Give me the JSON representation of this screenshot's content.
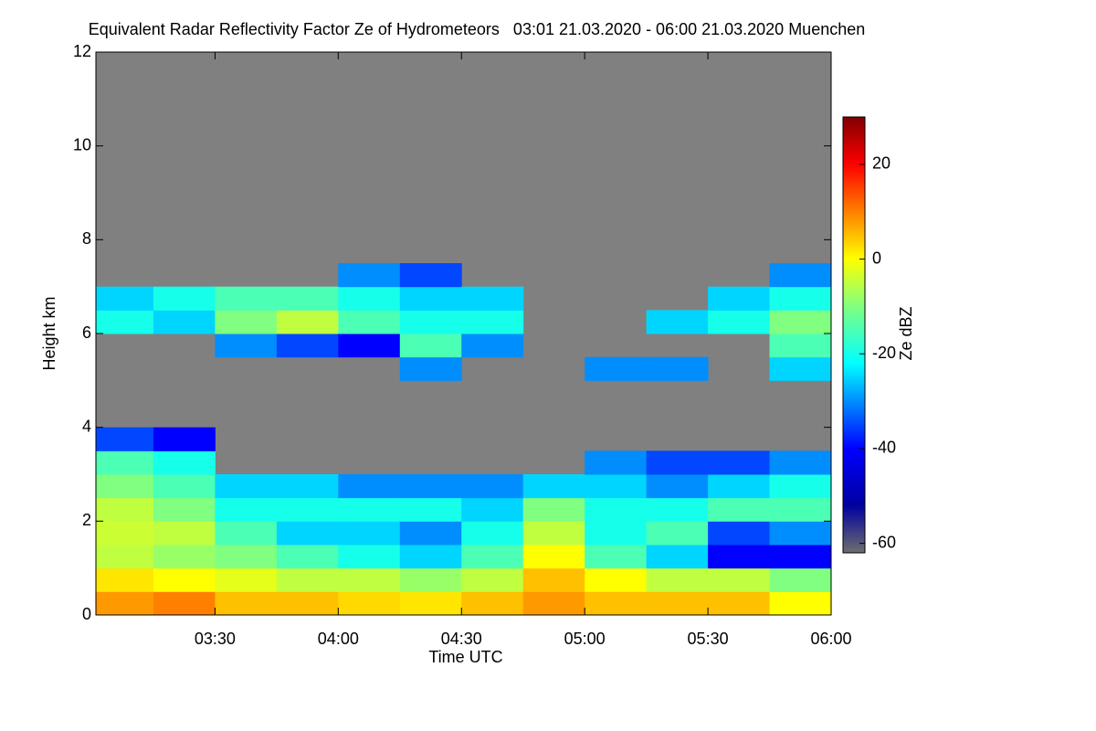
{
  "chart_data": {
    "type": "heatmap",
    "title": "Equivalent Radar Reflectivity Factor Ze of Hydrometeors   03:01 21.03.2020 - 06:00 21.03.2020 Muenchen",
    "x_label": "Time UTC",
    "y_label": "Height km",
    "colorbar_label": "Ze dBZ",
    "background": "#808080",
    "xlim": [
      3.0167,
      6.0
    ],
    "xticks": [
      {
        "value": 3.5,
        "label": "03:30"
      },
      {
        "value": 4.0,
        "label": "04:00"
      },
      {
        "value": 4.5,
        "label": "04:30"
      },
      {
        "value": 5.0,
        "label": "05:00"
      },
      {
        "value": 5.5,
        "label": "05:30"
      },
      {
        "value": 6.0,
        "label": "06:00"
      }
    ],
    "ylim": [
      0,
      12
    ],
    "yticks": [
      0,
      2,
      4,
      6,
      8,
      10,
      12
    ],
    "clim": [
      -62,
      30
    ],
    "cticks": [
      -60,
      -40,
      -20,
      0,
      20
    ],
    "colormap": [
      {
        "value": -62,
        "color": "#6e6e6e"
      },
      {
        "value": -52,
        "color": "#0000a0"
      },
      {
        "value": -40,
        "color": "#0000ff"
      },
      {
        "value": -22,
        "color": "#00ffff"
      },
      {
        "value": -10,
        "color": "#80ff80"
      },
      {
        "value": 0,
        "color": "#ffff00"
      },
      {
        "value": 10,
        "color": "#ff8000"
      },
      {
        "value": 20,
        "color": "#ff0000"
      },
      {
        "value": 30,
        "color": "#800000"
      }
    ],
    "x": [
      3.125,
      3.375,
      3.625,
      3.875,
      4.125,
      4.375,
      4.625,
      4.875,
      5.125,
      5.375,
      5.625,
      5.875
    ],
    "y": [
      0.25,
      0.75,
      1.25,
      1.75,
      2.25,
      2.75,
      3.25,
      3.75,
      4.25,
      4.75,
      5.25,
      5.75,
      6.25,
      6.75,
      7.25
    ],
    "z": [
      [
        8,
        2,
        -5,
        -4,
        -5,
        -10,
        -15,
        -35,
        null,
        null,
        null,
        null,
        -20,
        -25,
        null
      ],
      [
        10,
        0,
        -8,
        -5,
        -10,
        -15,
        -20,
        -40,
        null,
        null,
        null,
        null,
        -25,
        -20,
        null
      ],
      [
        5,
        -2,
        -10,
        -15,
        -20,
        -25,
        null,
        null,
        null,
        null,
        null,
        -30,
        -10,
        -15,
        null
      ],
      [
        5,
        -5,
        -15,
        -25,
        -20,
        -25,
        null,
        null,
        null,
        null,
        null,
        -35,
        -5,
        -15,
        null
      ],
      [
        3,
        -5,
        -20,
        -25,
        -20,
        -30,
        null,
        null,
        null,
        null,
        null,
        -40,
        -15,
        -20,
        -30
      ],
      [
        2,
        -8,
        -25,
        -30,
        -20,
        -30,
        null,
        null,
        null,
        null,
        -30,
        -15,
        -20,
        -25,
        -35
      ],
      [
        5,
        -5,
        -15,
        -20,
        -25,
        -30,
        null,
        null,
        null,
        null,
        null,
        -30,
        -20,
        -25,
        null
      ],
      [
        8,
        5,
        0,
        -5,
        -10,
        -25,
        null,
        null,
        null,
        null,
        null,
        null,
        null,
        null,
        null
      ],
      [
        5,
        0,
        -15,
        -20,
        -20,
        -25,
        -30,
        null,
        null,
        null,
        -30,
        null,
        null,
        null,
        null
      ],
      [
        5,
        -5,
        -25,
        -15,
        -20,
        -30,
        -35,
        null,
        null,
        null,
        -30,
        null,
        -25,
        null,
        null
      ],
      [
        5,
        -5,
        -40,
        -35,
        -15,
        -25,
        -35,
        null,
        null,
        null,
        null,
        null,
        -20,
        -25,
        null
      ],
      [
        0,
        -10,
        -40,
        -30,
        -15,
        -20,
        -30,
        null,
        null,
        null,
        -25,
        -15,
        -10,
        -20,
        -30
      ]
    ]
  }
}
